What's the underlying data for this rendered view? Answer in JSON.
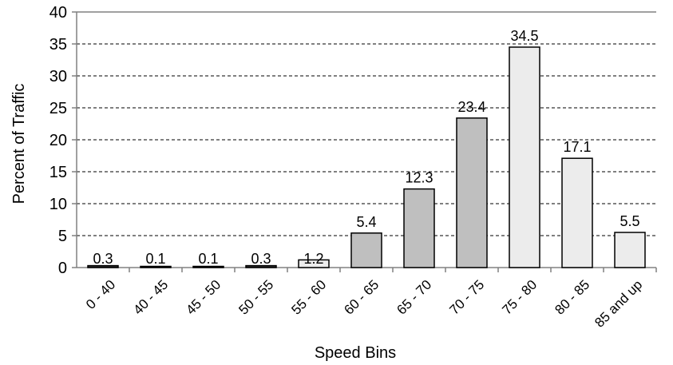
{
  "chart_data": {
    "type": "bar",
    "title": "",
    "xlabel": "Speed Bins",
    "ylabel": "Percent of Traffic",
    "ylim": [
      0,
      40
    ],
    "yticks": [
      0,
      5,
      10,
      15,
      20,
      25,
      30,
      35,
      40
    ],
    "grid": true,
    "categories": [
      "0 - 40",
      "40 - 45",
      "45 - 50",
      "50 - 55",
      "55 - 60",
      "60 - 65",
      "65 - 70",
      "70 - 75",
      "75 - 80",
      "80 - 85",
      "85 and up"
    ],
    "values": [
      0.3,
      0.1,
      0.1,
      0.3,
      1.2,
      5.4,
      12.3,
      23.4,
      34.5,
      17.1,
      5.5
    ],
    "labels": [
      "0.3",
      "0.1",
      "0.1",
      "0.3",
      "1.2",
      "5.4",
      "12.3",
      "23.4",
      "34.5",
      "17.1",
      "5.5"
    ],
    "bar_colors": [
      "#333333",
      "#333333",
      "#333333",
      "#333333",
      "#ececec",
      "#bfbfbf",
      "#bfbfbf",
      "#bfbfbf",
      "#ececec",
      "#ececec",
      "#ececec"
    ],
    "border_color": "#000000",
    "grid_color": "#000000",
    "axis_color": "#808080"
  }
}
